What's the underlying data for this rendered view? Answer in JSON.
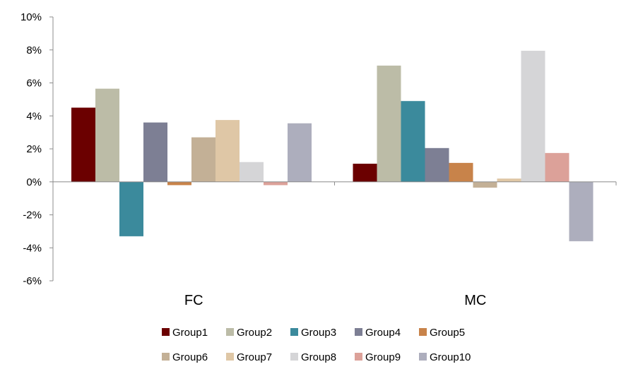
{
  "chart_data": {
    "type": "bar",
    "title": "",
    "xlabel": "",
    "ylabel": "",
    "categories": [
      "FC",
      "MC"
    ],
    "ylim": [
      -6,
      10
    ],
    "yticks": [
      10,
      8,
      6,
      4,
      2,
      0,
      -2,
      -4,
      -6
    ],
    "ytick_labels": [
      "10%",
      "8%",
      "6%",
      "4%",
      "2%",
      "0%",
      "-2%",
      "-4%",
      "-6%"
    ],
    "value_unit": "%",
    "grid": false,
    "legend_position": "bottom",
    "series": [
      {
        "name": "Group1",
        "color": "#6b0000",
        "values": [
          4.5,
          1.1
        ]
      },
      {
        "name": "Group2",
        "color": "#bcbca7",
        "values": [
          5.65,
          7.05
        ]
      },
      {
        "name": "Group3",
        "color": "#3b8a9c",
        "values": [
          -3.3,
          4.9
        ]
      },
      {
        "name": "Group4",
        "color": "#7d7f94",
        "values": [
          3.6,
          2.05
        ]
      },
      {
        "name": "Group5",
        "color": "#c8834a",
        "values": [
          -0.2,
          1.15
        ]
      },
      {
        "name": "Group6",
        "color": "#c3b096",
        "values": [
          2.7,
          -0.35
        ]
      },
      {
        "name": "Group7",
        "color": "#dfc7a6",
        "values": [
          3.75,
          0.2
        ]
      },
      {
        "name": "Group8",
        "color": "#d5d5d7",
        "values": [
          1.2,
          7.95
        ]
      },
      {
        "name": "Group9",
        "color": "#dca199",
        "values": [
          -0.2,
          1.75
        ]
      },
      {
        "name": "Group10",
        "color": "#adaebd",
        "values": [
          3.55,
          -3.6
        ]
      }
    ]
  }
}
